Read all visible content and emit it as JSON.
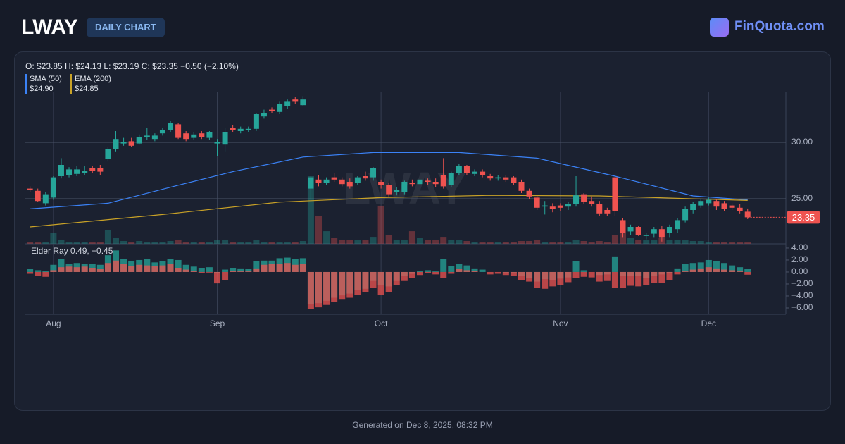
{
  "header": {
    "ticker": "LWAY",
    "badge": "DAILY CHART",
    "brand": "FinQuota.com"
  },
  "footer": "Generated on Dec 8, 2025, 08:32 PM",
  "chart_data": [
    {
      "type": "candlestick",
      "ohlc_text": "O: $23.85 H: $24.13 L: $23.19 C: $23.35 −0.50 (−2.10%)",
      "up_color": "#26a69a",
      "down_color": "#ef5350",
      "grid": true,
      "xlim": [
        -0.6,
        96.9
      ],
      "xticks": [
        {
          "value": 3,
          "label": "Aug"
        },
        {
          "value": 24,
          "label": "Sep"
        },
        {
          "value": 45,
          "label": "Oct"
        },
        {
          "value": 68,
          "label": "Nov"
        },
        {
          "value": 87,
          "label": "Dec"
        }
      ],
      "ylim": [
        21,
        34.5
      ],
      "yticks": [
        {
          "value": 25,
          "label": "25.00"
        },
        {
          "value": 30,
          "label": "30.00"
        }
      ],
      "open": [
        25.9,
        25.7,
        24.6,
        25.1,
        27.0,
        27.1,
        27.2,
        27.3,
        27.7,
        27.7,
        28.5,
        29.4,
        29.9,
        30.1,
        29.9,
        30.5,
        30.3,
        30.8,
        31.1,
        31.6,
        30.8,
        30.4,
        30.8,
        30.4,
        29.9,
        29.8,
        31.3,
        31.0,
        31.1,
        31.2,
        32.3,
        32.9,
        32.7,
        33.2,
        33.8,
        33.3,
        25.9,
        26.7,
        26.4,
        26.9,
        26.7,
        26.5,
        26.4,
        27.0,
        26.9,
        26.5,
        26.2,
        25.6,
        25.6,
        26.4,
        26.3,
        26.6,
        26.5,
        27.1,
        26.2,
        27.3,
        27.9,
        27.2,
        27.4,
        27.0,
        26.8,
        26.9,
        26.9,
        26.5,
        25.7,
        25.1,
        24.3,
        24.3,
        24.4,
        24.3,
        24.5,
        25.4,
        24.8,
        24.5,
        24.0,
        26.9,
        23.1,
        22.1,
        22.5,
        21.7,
        21.9,
        22.3,
        22.0,
        22.3,
        23.1,
        24.0,
        24.4,
        24.6,
        24.8,
        24.6,
        24.4,
        24.2,
        23.85
      ],
      "high": [
        26.1,
        25.9,
        25.6,
        27.0,
        28.6,
        27.8,
        27.9,
        27.9,
        27.9,
        28.0,
        29.6,
        31.0,
        30.4,
        30.4,
        30.7,
        31.3,
        30.8,
        31.3,
        31.9,
        31.7,
        31.0,
        30.9,
        31.0,
        31.0,
        30.3,
        31.3,
        31.5,
        31.4,
        31.4,
        32.6,
        32.9,
        33.1,
        33.6,
        33.8,
        34.0,
        34.1,
        27.0,
        27.1,
        26.9,
        27.3,
        26.9,
        26.8,
        27.0,
        27.4,
        27.8,
        26.7,
        26.4,
        26.0,
        26.6,
        26.7,
        26.9,
        26.8,
        26.8,
        28.6,
        27.4,
        28.1,
        28.0,
        27.6,
        27.6,
        27.2,
        27.1,
        27.1,
        27.0,
        26.7,
        25.9,
        25.3,
        24.8,
        24.6,
        24.6,
        24.7,
        27.0,
        25.5,
        25.2,
        24.8,
        24.2,
        27.0,
        23.3,
        22.7,
        22.6,
        22.0,
        22.5,
        22.6,
        22.7,
        23.3,
        24.3,
        24.7,
        25.0,
        25.1,
        25.0,
        24.8,
        24.6,
        24.5,
        24.13
      ],
      "low": [
        25.6,
        24.7,
        24.4,
        24.9,
        26.8,
        26.9,
        27.0,
        27.1,
        27.3,
        27.1,
        28.3,
        29.2,
        29.7,
        29.6,
        29.8,
        30.2,
        30.1,
        30.6,
        30.9,
        30.3,
        30.1,
        30.2,
        30.3,
        30.2,
        28.8,
        29.2,
        30.9,
        30.8,
        30.9,
        31.0,
        32.1,
        32.6,
        32.5,
        33.0,
        33.4,
        33.2,
        25.0,
        26.1,
        26.2,
        26.5,
        26.1,
        25.9,
        26.2,
        26.6,
        26.6,
        25.9,
        25.2,
        25.3,
        25.4,
        26.1,
        26.1,
        26.2,
        26.0,
        25.9,
        26.0,
        27.1,
        27.1,
        27.0,
        26.9,
        26.6,
        26.6,
        26.5,
        26.2,
        25.5,
        25.0,
        24.0,
        23.6,
        23.8,
        23.9,
        24.0,
        24.3,
        24.5,
        24.3,
        23.5,
        23.5,
        23.5,
        21.6,
        21.8,
        21.7,
        21.4,
        21.6,
        21.2,
        21.6,
        22.0,
        22.9,
        23.7,
        24.2,
        24.4,
        24.0,
        23.9,
        24.0,
        23.7,
        23.19
      ],
      "close": [
        25.8,
        24.8,
        25.4,
        26.9,
        28.0,
        27.6,
        27.6,
        27.5,
        27.5,
        27.4,
        29.4,
        30.3,
        30.0,
        29.7,
        30.5,
        30.6,
        30.6,
        31.1,
        31.7,
        30.4,
        30.3,
        30.7,
        30.5,
        30.9,
        30.0,
        30.9,
        31.1,
        31.2,
        31.2,
        32.5,
        32.6,
        32.8,
        33.4,
        33.6,
        33.6,
        33.8,
        26.9,
        26.4,
        26.7,
        26.7,
        26.3,
        26.1,
        26.9,
        26.8,
        27.7,
        26.2,
        25.4,
        25.8,
        26.5,
        26.3,
        26.7,
        26.5,
        26.3,
        26.1,
        27.3,
        27.9,
        27.3,
        27.4,
        27.1,
        26.8,
        26.9,
        26.7,
        26.4,
        25.7,
        25.2,
        24.2,
        24.4,
        24.1,
        24.2,
        24.5,
        25.3,
        24.7,
        24.5,
        23.7,
        23.7,
        23.9,
        22.0,
        22.5,
        21.8,
        21.8,
        22.3,
        21.6,
        22.5,
        23.1,
        24.1,
        24.5,
        24.8,
        24.9,
        24.3,
        24.1,
        24.2,
        23.9,
        23.35
      ],
      "volume": [
        94000,
        62000,
        94000,
        470000,
        188000,
        94000,
        94000,
        94000,
        94000,
        94000,
        600000,
        250000,
        125000,
        94000,
        125000,
        94000,
        94000,
        94000,
        125000,
        156000,
        94000,
        94000,
        94000,
        94000,
        156000,
        188000,
        94000,
        94000,
        94000,
        156000,
        94000,
        94000,
        94000,
        94000,
        94000,
        125000,
        3000000,
        1250000,
        560000,
        250000,
        188000,
        156000,
        156000,
        156000,
        310000,
        1690000,
        375000,
        188000,
        188000,
        560000,
        250000,
        156000,
        188000,
        310000,
        188000,
        156000,
        125000,
        94000,
        94000,
        94000,
        94000,
        94000,
        94000,
        125000,
        125000,
        188000,
        94000,
        94000,
        94000,
        94000,
        188000,
        125000,
        94000,
        125000,
        94000,
        375000,
        470000,
        250000,
        188000,
        156000,
        156000,
        250000,
        188000,
        188000,
        156000,
        125000,
        125000,
        94000,
        94000,
        94000,
        62000,
        94000,
        62000
      ],
      "series": [
        {
          "name": "SMA (50)",
          "color": "#3b82f6",
          "legend_value": "$24.90",
          "x": [
            0,
            10,
            19,
            26,
            35,
            44,
            55,
            65,
            75,
            85,
            92
          ],
          "values": [
            24.1,
            24.6,
            26.2,
            27.4,
            28.7,
            29.1,
            29.1,
            28.6,
            27.0,
            25.25,
            24.9
          ]
        },
        {
          "name": "EMA (200)",
          "color": "#c9a227",
          "legend_value": "$24.85",
          "x": [
            0,
            17,
            32,
            45,
            59,
            73,
            92
          ],
          "values": [
            22.5,
            23.6,
            24.7,
            25.1,
            25.3,
            25.25,
            24.85
          ]
        }
      ],
      "last_price": 23.35
    },
    {
      "type": "bar",
      "title": "Elder Ray 0.49, −0.45",
      "ylim": [
        -7.06,
        4.7
      ],
      "yticks": [
        {
          "value": 4,
          "label": "4.00"
        },
        {
          "value": 2,
          "label": "2.00"
        },
        {
          "value": 0,
          "label": "0.00"
        },
        {
          "value": -2,
          "label": "−2.00"
        },
        {
          "value": -4,
          "label": "−4.00"
        },
        {
          "value": -6,
          "label": "−6.00"
        }
      ],
      "series": [
        {
          "color": "#26a69a",
          "values": [
            0.5,
            0.3,
            0.2,
            1.2,
            2.2,
            1.4,
            1.5,
            1.4,
            1.3,
            1.2,
            2.8,
            3.6,
            2.2,
            1.8,
            2.0,
            2.2,
            1.6,
            1.8,
            2.2,
            2.0,
            1.2,
            0.9,
            0.7,
            0.8,
            -0.2,
            0.4,
            0.7,
            0.6,
            0.5,
            1.8,
            1.9,
            1.9,
            2.3,
            2.4,
            2.2,
            2.3,
            -5.4,
            -5.2,
            -4.8,
            -4.3,
            -3.9,
            -3.6,
            -3.0,
            -2.8,
            -1.5,
            -2.2,
            -2.4,
            -1.5,
            -0.6,
            -0.3,
            0.2,
            0.3,
            0.1,
            2.2,
            1.0,
            1.3,
            1.1,
            0.6,
            0.4,
            0.0,
            0.0,
            -0.1,
            -0.1,
            -0.6,
            -1.0,
            -1.6,
            -1.2,
            -1.3,
            -1.1,
            -0.9,
            1.8,
            0.3,
            0.0,
            -0.5,
            -0.4,
            2.6,
            -0.6,
            -0.6,
            -0.6,
            -1.0,
            -0.6,
            -0.4,
            -0.2,
            0.6,
            1.3,
            1.5,
            1.6,
            2.0,
            1.8,
            1.5,
            1.1,
            0.8,
            0.49
          ]
        },
        {
          "color": "#ef5350",
          "values": [
            -0.3,
            -0.6,
            -0.8,
            0.3,
            0.8,
            0.9,
            0.8,
            0.9,
            0.7,
            0.5,
            1.5,
            1.9,
            1.4,
            1.0,
            1.2,
            1.1,
            1.0,
            1.1,
            1.3,
            0.7,
            0.4,
            0.2,
            -0.2,
            -0.1,
            -1.9,
            -1.4,
            0.2,
            0.1,
            0.1,
            0.6,
            1.2,
            1.3,
            1.3,
            1.5,
            1.2,
            1.4,
            -6.2,
            -5.9,
            -5.5,
            -5.0,
            -4.5,
            -4.3,
            -3.8,
            -3.4,
            -2.6,
            -3.8,
            -3.3,
            -2.2,
            -1.5,
            -1.0,
            -0.5,
            -0.2,
            -0.4,
            -1.0,
            -0.3,
            0.5,
            0.3,
            0.2,
            0.0,
            -0.4,
            -0.3,
            -0.5,
            -0.6,
            -1.4,
            -1.6,
            -2.6,
            -2.8,
            -2.4,
            -2.2,
            -1.7,
            -1.0,
            -0.8,
            -0.9,
            -1.6,
            -1.5,
            -2.6,
            -2.6,
            -2.3,
            -2.4,
            -2.2,
            -1.8,
            -1.8,
            -1.4,
            -0.4,
            0.1,
            0.4,
            0.6,
            0.8,
            0.6,
            0.4,
            0.3,
            0.1,
            -0.45
          ]
        }
      ]
    }
  ]
}
